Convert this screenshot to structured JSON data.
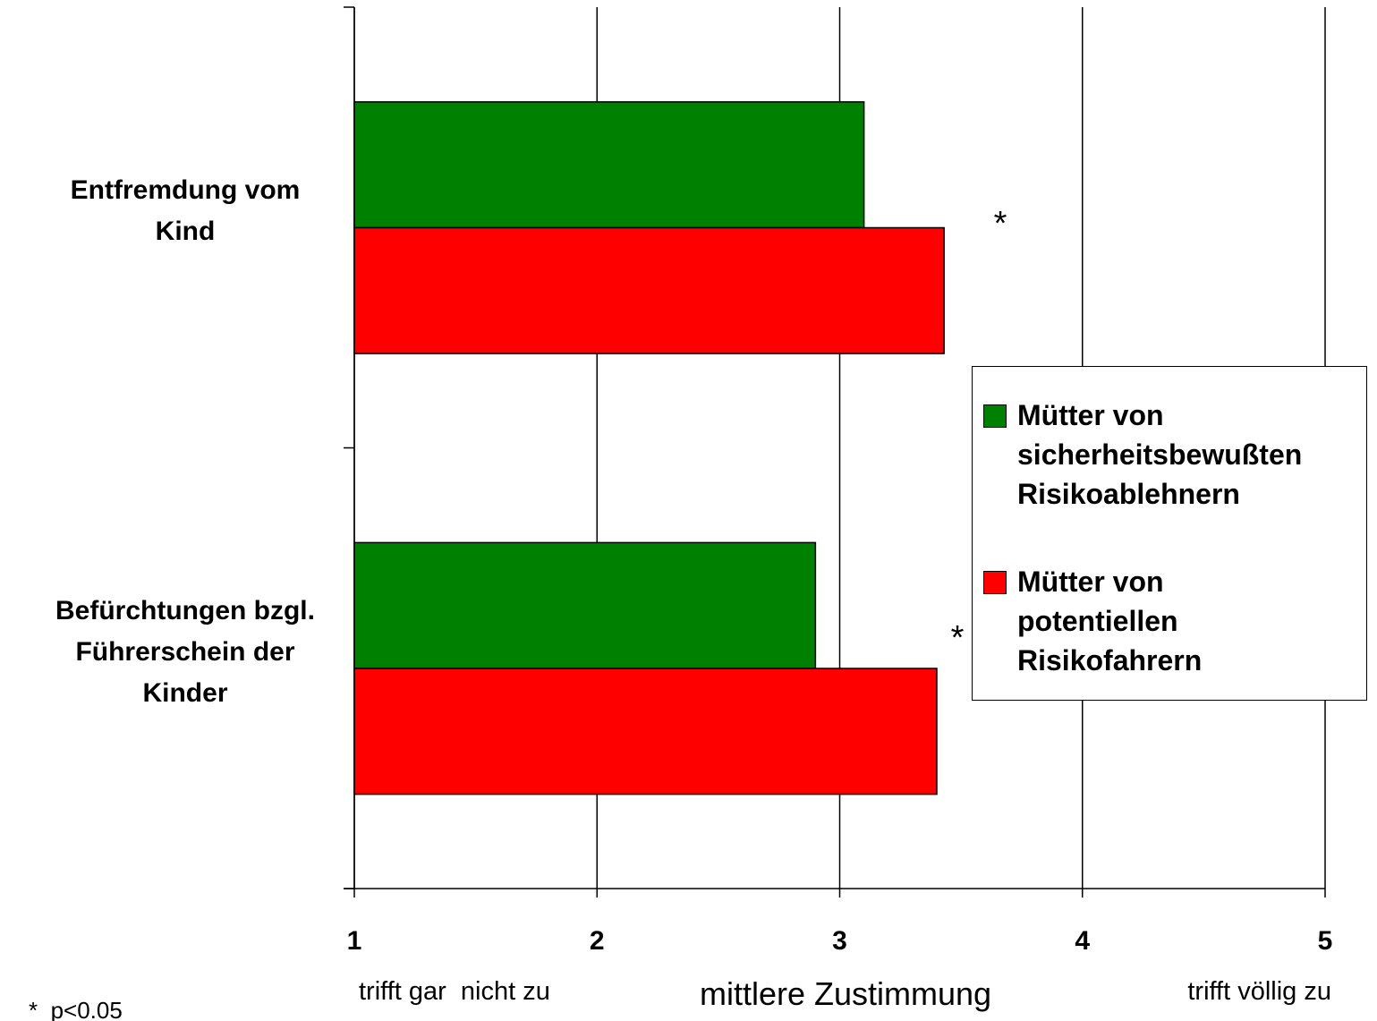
{
  "chart_data": {
    "type": "bar",
    "orientation": "horizontal",
    "categories": [
      "Entfremdung vom\nKind",
      "Befürchtungen bzgl.\nFührerschein der\nKinder"
    ],
    "series": [
      {
        "name": "Mütter von\nsicherheitsbewußten\nRisikoablehnern",
        "color": "#008000",
        "values": [
          3.1,
          2.9
        ]
      },
      {
        "name": "Mütter von\npotentiellen\nRisikofahrern",
        "color": "#ff0000",
        "values": [
          3.43,
          3.4
        ]
      }
    ],
    "xlim": [
      1,
      5
    ],
    "xticks": [
      1,
      2,
      3,
      4,
      5
    ],
    "grid": true,
    "xlabel": "mittlere Zustimmung",
    "annotations": [
      "*",
      "*",
      "trifft gar  nicht zu",
      "trifft völlig zu",
      "*  p<0.05"
    ]
  }
}
